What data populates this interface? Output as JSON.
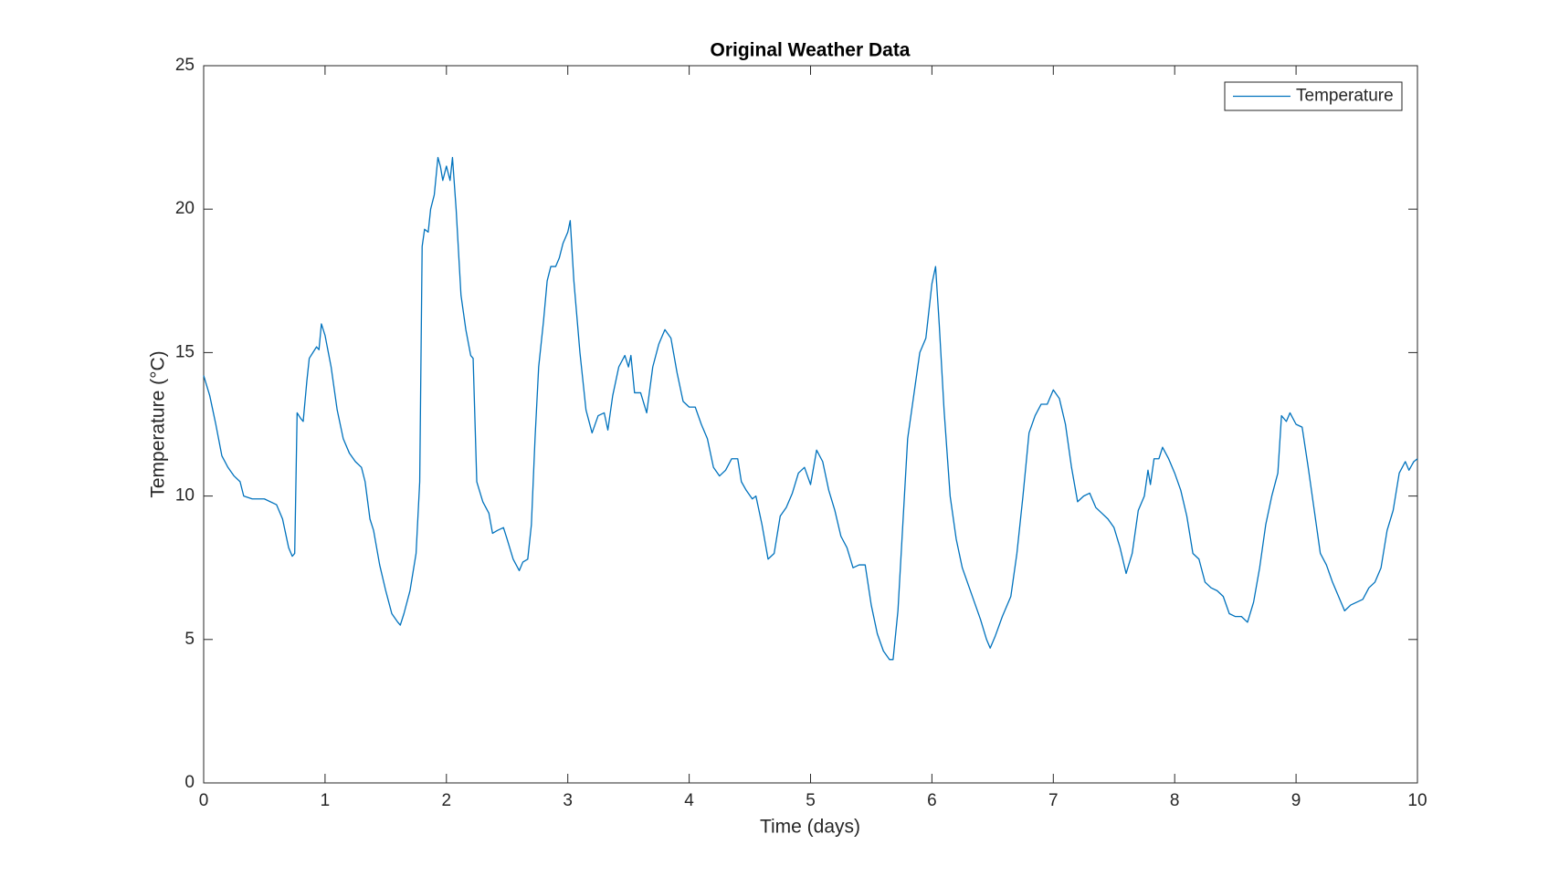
{
  "chart_data": {
    "type": "line",
    "title": "Original Weather Data",
    "x_label": "Time (days)",
    "y_label": "Temperature (°C)",
    "x": [
      0,
      0.05,
      0.1,
      0.15,
      0.2,
      0.25,
      0.3,
      0.33,
      0.4,
      0.5,
      0.6,
      0.65,
      0.7,
      0.73,
      0.75,
      0.77,
      0.8,
      0.82,
      0.85,
      0.87,
      0.9,
      0.93,
      0.95,
      0.97,
      1.0,
      1.05,
      1.1,
      1.15,
      1.2,
      1.25,
      1.3,
      1.33,
      1.37,
      1.4,
      1.45,
      1.5,
      1.55,
      1.6,
      1.62,
      1.65,
      1.7,
      1.75,
      1.78,
      1.8,
      1.82,
      1.85,
      1.87,
      1.9,
      1.93,
      1.95,
      1.97,
      2.0,
      2.03,
      2.05,
      2.08,
      2.12,
      2.16,
      2.2,
      2.22,
      2.25,
      2.3,
      2.35,
      2.38,
      2.42,
      2.47,
      2.5,
      2.55,
      2.6,
      2.63,
      2.67,
      2.7,
      2.73,
      2.76,
      2.8,
      2.83,
      2.86,
      2.9,
      2.93,
      2.96,
      3.0,
      3.02,
      3.05,
      3.1,
      3.15,
      3.2,
      3.25,
      3.3,
      3.33,
      3.37,
      3.42,
      3.47,
      3.5,
      3.52,
      3.55,
      3.6,
      3.65,
      3.7,
      3.75,
      3.8,
      3.85,
      3.9,
      3.95,
      4.0,
      4.05,
      4.1,
      4.15,
      4.2,
      4.25,
      4.3,
      4.35,
      4.4,
      4.43,
      4.47,
      4.52,
      4.55,
      4.6,
      4.65,
      4.7,
      4.75,
      4.8,
      4.85,
      4.9,
      4.95,
      5.0,
      5.05,
      5.1,
      5.15,
      5.2,
      5.25,
      5.3,
      5.35,
      5.4,
      5.45,
      5.5,
      5.55,
      5.6,
      5.65,
      5.68,
      5.72,
      5.76,
      5.8,
      5.85,
      5.9,
      5.95,
      6.0,
      6.03,
      6.06,
      6.1,
      6.15,
      6.2,
      6.25,
      6.3,
      6.35,
      6.4,
      6.45,
      6.48,
      6.52,
      6.58,
      6.65,
      6.7,
      6.75,
      6.8,
      6.85,
      6.9,
      6.95,
      7.0,
      7.05,
      7.1,
      7.15,
      7.2,
      7.25,
      7.3,
      7.35,
      7.4,
      7.45,
      7.5,
      7.55,
      7.6,
      7.65,
      7.7,
      7.75,
      7.78,
      7.8,
      7.83,
      7.87,
      7.9,
      7.95,
      8.0,
      8.05,
      8.1,
      8.15,
      8.2,
      8.25,
      8.3,
      8.35,
      8.4,
      8.45,
      8.5,
      8.55,
      8.6,
      8.65,
      8.7,
      8.75,
      8.8,
      8.85,
      8.88,
      8.92,
      8.95,
      9.0,
      9.05,
      9.1,
      9.15,
      9.2,
      9.25,
      9.3,
      9.35,
      9.4,
      9.45,
      9.5,
      9.55,
      9.6,
      9.65,
      9.7,
      9.75,
      9.8,
      9.85,
      9.9,
      9.93,
      9.97,
      10.0
    ],
    "series": [
      {
        "name": "Temperature",
        "color": "#0072bd",
        "values": [
          14.2,
          13.5,
          12.5,
          11.4,
          11.0,
          10.7,
          10.5,
          10.0,
          9.9,
          9.9,
          9.7,
          9.2,
          8.2,
          7.9,
          8.0,
          12.9,
          12.7,
          12.6,
          14.0,
          14.8,
          15.0,
          15.2,
          15.1,
          16.0,
          15.6,
          14.5,
          13.0,
          12.0,
          11.5,
          11.2,
          11.0,
          10.5,
          9.2,
          8.8,
          7.6,
          6.7,
          5.9,
          5.6,
          5.5,
          5.9,
          6.7,
          8.0,
          10.5,
          18.7,
          19.3,
          19.2,
          20.0,
          20.5,
          21.8,
          21.5,
          21.0,
          21.5,
          21.0,
          21.8,
          20.0,
          17.0,
          15.8,
          14.9,
          14.8,
          10.5,
          9.8,
          9.4,
          8.7,
          8.8,
          8.9,
          8.5,
          7.8,
          7.4,
          7.7,
          7.8,
          9.0,
          12.0,
          14.5,
          16.1,
          17.5,
          18.0,
          18.0,
          18.3,
          18.8,
          19.2,
          19.6,
          17.5,
          15.0,
          13.0,
          12.2,
          12.8,
          12.9,
          12.3,
          13.5,
          14.5,
          14.9,
          14.5,
          14.9,
          13.6,
          13.6,
          12.9,
          14.5,
          15.3,
          15.8,
          15.5,
          14.3,
          13.3,
          13.1,
          13.1,
          12.5,
          12.0,
          11.0,
          10.7,
          10.9,
          11.3,
          11.3,
          10.5,
          10.2,
          9.9,
          10.0,
          9.0,
          7.8,
          8.0,
          9.3,
          9.6,
          10.1,
          10.8,
          11.0,
          10.4,
          11.6,
          11.2,
          10.2,
          9.5,
          8.6,
          8.2,
          7.5,
          7.6,
          7.6,
          6.2,
          5.2,
          4.6,
          4.3,
          4.3,
          6.0,
          9.0,
          12.0,
          13.5,
          15.0,
          15.5,
          17.4,
          18.0,
          16.0,
          13.0,
          10.0,
          8.5,
          7.5,
          6.9,
          6.3,
          5.7,
          5.0,
          4.7,
          5.1,
          5.8,
          6.5,
          8.0,
          10.0,
          12.2,
          12.8,
          13.2,
          13.2,
          13.7,
          13.4,
          12.5,
          11.0,
          9.8,
          10.0,
          10.1,
          9.6,
          9.4,
          9.2,
          8.9,
          8.2,
          7.3,
          8.0,
          9.5,
          10.0,
          10.9,
          10.4,
          11.3,
          11.3,
          11.7,
          11.3,
          10.8,
          10.2,
          9.3,
          8.0,
          7.8,
          7.0,
          6.8,
          6.7,
          6.5,
          5.9,
          5.8,
          5.8,
          5.6,
          6.3,
          7.5,
          9.0,
          10.0,
          10.8,
          12.8,
          12.6,
          12.9,
          12.5,
          12.4,
          11.0,
          9.5,
          8.0,
          7.6,
          7.0,
          6.5,
          6.0,
          6.2,
          6.3,
          6.4,
          6.8,
          7.0,
          7.5,
          8.8,
          9.5,
          10.8,
          11.2,
          10.9,
          11.2,
          11.3
        ]
      }
    ],
    "xlim": [
      0,
      10
    ],
    "xticks": [
      0,
      1,
      2,
      3,
      4,
      5,
      6,
      7,
      8,
      9,
      10
    ],
    "ylim": [
      0,
      25
    ],
    "yticks": [
      0,
      5,
      10,
      15,
      20,
      25
    ],
    "legend": "upper right",
    "grid": false
  }
}
